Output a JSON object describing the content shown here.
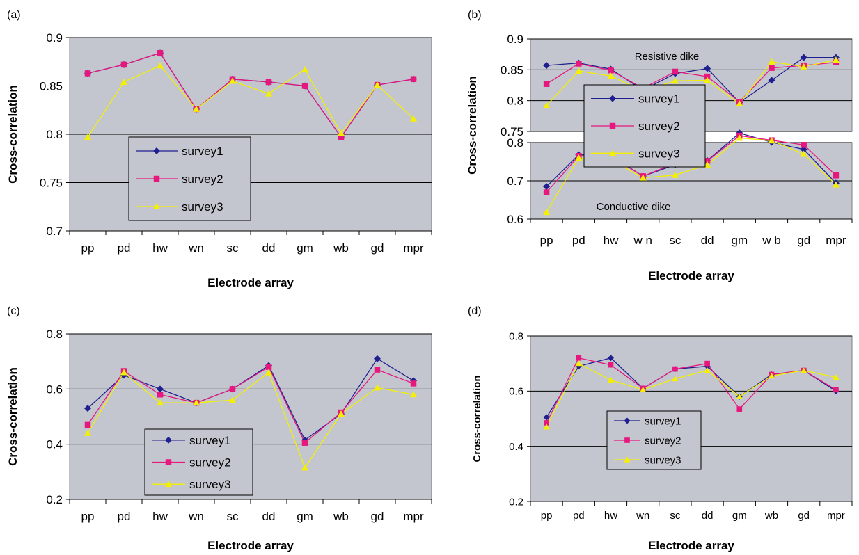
{
  "colors": {
    "survey1": "#1f1f8f",
    "survey2": "#e6187e",
    "survey3": "#f4f000",
    "plot_bg": "#c3c6ce",
    "grid": "#000000",
    "frame": "#7d7d7d"
  },
  "categories": [
    "pp",
    "pd",
    "hw",
    "wn",
    "sc",
    "dd",
    "gm",
    "wb",
    "gd",
    "mpr"
  ],
  "categories_b": [
    "pp",
    "pd",
    "hw",
    "w n",
    "sc",
    "dd",
    "gm",
    "w b",
    "gd",
    "mpr"
  ],
  "chart_data": [
    {
      "panel_label": "(a)",
      "type": "line",
      "xlabel": "Electrode array",
      "ylabel": "Cross-correlation",
      "ylim": [
        0.7,
        0.9
      ],
      "yticks": [
        "0.7",
        "0.75",
        "0.8",
        "0.85",
        "0.9"
      ],
      "grid": "horizontal",
      "legend_position": "lower-left",
      "series": [
        {
          "name": "survey1",
          "values": [
            0.863,
            0.872,
            0.884,
            0.826,
            0.857,
            0.854,
            0.85,
            0.797,
            0.851,
            0.857
          ]
        },
        {
          "name": "survey2",
          "values": [
            0.863,
            0.872,
            0.884,
            0.826,
            0.857,
            0.854,
            0.85,
            0.797,
            0.851,
            0.857
          ]
        },
        {
          "name": "survey3",
          "values": [
            0.797,
            0.854,
            0.871,
            0.826,
            0.855,
            0.842,
            0.867,
            0.801,
            0.851,
            0.816
          ]
        }
      ]
    },
    {
      "panel_label": "(b)",
      "type": "line",
      "xlabel": "Electrode array",
      "ylabel": "Cross-correlation",
      "legend_position": "center",
      "subplots": [
        {
          "annotation": "Resistive dike",
          "ylim": [
            0.75,
            0.9
          ],
          "yticks": [
            "0.75",
            "0.8",
            "0.85",
            "0.9"
          ],
          "series": [
            {
              "name": "survey1",
              "values": [
                0.857,
                0.861,
                0.851,
                0.817,
                0.844,
                0.852,
                0.797,
                0.833,
                0.87,
                0.87
              ]
            },
            {
              "name": "survey2",
              "values": [
                0.827,
                0.86,
                0.849,
                0.82,
                0.847,
                0.839,
                0.798,
                0.853,
                0.857,
                0.862
              ]
            },
            {
              "name": "survey3",
              "values": [
                0.792,
                0.848,
                0.84,
                0.815,
                0.832,
                0.833,
                0.795,
                0.863,
                0.855,
                0.866
              ]
            }
          ]
        },
        {
          "annotation": "Conductive dike",
          "ylim": [
            0.6,
            0.8
          ],
          "yticks": [
            "0.6",
            "0.7",
            "0.8"
          ],
          "series": [
            {
              "name": "survey1",
              "values": [
                0.685,
                0.768,
                0.766,
                0.712,
                0.742,
                0.753,
                0.825,
                0.801,
                0.782,
                0.694
              ]
            },
            {
              "name": "survey2",
              "values": [
                0.67,
                0.765,
                0.764,
                0.712,
                0.746,
                0.752,
                0.818,
                0.806,
                0.794,
                0.714
              ]
            },
            {
              "name": "survey3",
              "values": [
                0.618,
                0.76,
                0.755,
                0.708,
                0.715,
                0.742,
                0.812,
                0.805,
                0.77,
                0.69
              ]
            }
          ]
        }
      ]
    },
    {
      "panel_label": "(c)",
      "type": "line",
      "xlabel": "Electrode array",
      "ylabel": "Cross-correlation",
      "ylim": [
        0.2,
        0.8
      ],
      "yticks": [
        "0.2",
        "0.4",
        "0.6",
        "0.8"
      ],
      "grid": "horizontal",
      "legend_position": "lower-center",
      "series": [
        {
          "name": "survey1",
          "values": [
            0.53,
            0.65,
            0.6,
            0.55,
            0.6,
            0.685,
            0.415,
            0.51,
            0.71,
            0.63
          ]
        },
        {
          "name": "survey2",
          "values": [
            0.47,
            0.665,
            0.58,
            0.55,
            0.6,
            0.68,
            0.405,
            0.515,
            0.67,
            0.62
          ]
        },
        {
          "name": "survey3",
          "values": [
            0.44,
            0.66,
            0.55,
            0.55,
            0.56,
            0.66,
            0.315,
            0.51,
            0.605,
            0.58
          ]
        }
      ]
    },
    {
      "panel_label": "(d)",
      "type": "line",
      "xlabel": "Electrode array",
      "ylabel": "Cross-correlation",
      "ylim": [
        0.2,
        0.8
      ],
      "yticks": [
        "0.2",
        "0.4",
        "0.6",
        "0.8"
      ],
      "grid": "horizontal",
      "legend_position": "lower-center",
      "series": [
        {
          "name": "survey1",
          "values": [
            0.505,
            0.69,
            0.72,
            0.61,
            0.68,
            0.69,
            0.58,
            0.66,
            0.675,
            0.6
          ]
        },
        {
          "name": "survey2",
          "values": [
            0.485,
            0.72,
            0.695,
            0.61,
            0.68,
            0.7,
            0.535,
            0.66,
            0.675,
            0.605
          ]
        },
        {
          "name": "survey3",
          "values": [
            0.47,
            0.7,
            0.64,
            0.605,
            0.645,
            0.675,
            0.58,
            0.655,
            0.675,
            0.65
          ]
        }
      ]
    }
  ]
}
